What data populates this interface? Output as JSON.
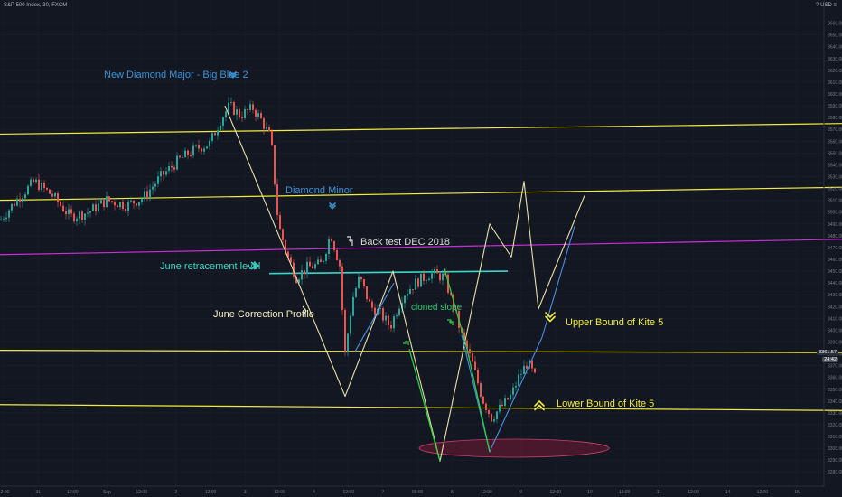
{
  "header": {
    "symbol": "S&P 500 Index, 30, FXCM",
    "currency": "? USD ≡"
  },
  "colors": {
    "background": "#131722",
    "yellow": "#f0ec3c",
    "magenta": "#cc2bd8",
    "teal": "#3bd6c6",
    "green": "#2ecc40",
    "blue": "#4a90e2",
    "cream": "#e8e0a8",
    "up_candle": "#26a69a",
    "down_candle": "#ef5350",
    "ellipse": "#7a1f3d"
  },
  "price_tags": {
    "tag1": "3361.57",
    "tag2": "24:42"
  },
  "annotations": {
    "diamond_major": "New Diamond Major - Big Blue 2",
    "diamond_minor": "Diamond Minor",
    "back_test": "Back test DEC 2018",
    "june_retracement": "June retracement level",
    "june_correction": "June Correction Profile",
    "cloned_slope": "cloned slope",
    "upper_bound": "Upper Bound of Kite 5",
    "lower_bound": "Lower Bound of Kite 5"
  },
  "chart_data": {
    "type": "candlestick",
    "y_axis_ticks": [
      3280,
      3290,
      3300,
      3310,
      3320,
      3330,
      3340,
      3350,
      3360,
      3370,
      3380,
      3390,
      3400,
      3410,
      3420,
      3430,
      3440,
      3450,
      3460,
      3470,
      3480,
      3490,
      3500,
      3510,
      3520,
      3530,
      3540,
      3550,
      3560,
      3570,
      3580,
      3590,
      3600,
      3610,
      3620,
      3630,
      3640,
      3650,
      3660
    ],
    "ylim": [
      3271,
      3675
    ],
    "x_axis_labels": [
      "12:00",
      "31",
      "12:00",
      "Sep",
      "12:00",
      "2",
      "12:00",
      "3",
      "12:00",
      "4",
      "12:00",
      "7",
      "09:00",
      "8",
      "12:00",
      "9",
      "12:00",
      "10",
      "12:00",
      "11",
      "12:00",
      "14",
      "12:00",
      "15"
    ],
    "lines": [
      {
        "name": "Upper yellow trend",
        "from": [
          0,
          3566
        ],
        "to": [
          932,
          3575
        ],
        "color": "yellow"
      },
      {
        "name": "Middle yellow trend",
        "from": [
          0,
          3510
        ],
        "to": [
          932,
          3521
        ],
        "color": "yellow"
      },
      {
        "name": "Magenta trend",
        "from": [
          0,
          3464
        ],
        "to": [
          932,
          3477
        ],
        "color": "magenta"
      },
      {
        "name": "Upper Bound of Kite 5",
        "from": [
          0,
          3383
        ],
        "to": [
          932,
          3381
        ],
        "color": "yellow"
      },
      {
        "name": "Lower Bound of Kite 5",
        "from": [
          0,
          3337
        ],
        "to": [
          932,
          3332
        ],
        "color": "yellow"
      },
      {
        "name": "June retracement level",
        "from": [
          298,
          3448
        ],
        "to": [
          562,
          3450
        ],
        "color": "teal"
      }
    ],
    "candle_path": [
      [
        0,
        3493
      ],
      [
        18,
        3510
      ],
      [
        38,
        3526
      ],
      [
        58,
        3514
      ],
      [
        78,
        3496
      ],
      [
        98,
        3500
      ],
      [
        118,
        3510
      ],
      [
        140,
        3506
      ],
      [
        158,
        3512
      ],
      [
        178,
        3530
      ],
      [
        198,
        3544
      ],
      [
        218,
        3554
      ],
      [
        232,
        3558
      ],
      [
        244,
        3578
      ],
      [
        254,
        3590
      ],
      [
        266,
        3582
      ],
      [
        280,
        3588
      ],
      [
        290,
        3577
      ],
      [
        300,
        3562
      ],
      [
        308,
        3490
      ],
      [
        318,
        3463
      ],
      [
        328,
        3445
      ],
      [
        340,
        3453
      ],
      [
        356,
        3456
      ],
      [
        366,
        3482
      ],
      [
        376,
        3455
      ],
      [
        382,
        3380
      ],
      [
        390,
        3426
      ],
      [
        398,
        3445
      ],
      [
        410,
        3420
      ],
      [
        420,
        3415
      ],
      [
        432,
        3403
      ],
      [
        446,
        3430
      ],
      [
        460,
        3440
      ],
      [
        476,
        3448
      ],
      [
        492,
        3445
      ],
      [
        502,
        3420
      ],
      [
        512,
        3393
      ],
      [
        522,
        3374
      ],
      [
        534,
        3342
      ],
      [
        544,
        3326
      ],
      [
        556,
        3336
      ],
      [
        566,
        3345
      ],
      [
        574,
        3360
      ],
      [
        584,
        3373
      ],
      [
        592,
        3360
      ]
    ]
  }
}
